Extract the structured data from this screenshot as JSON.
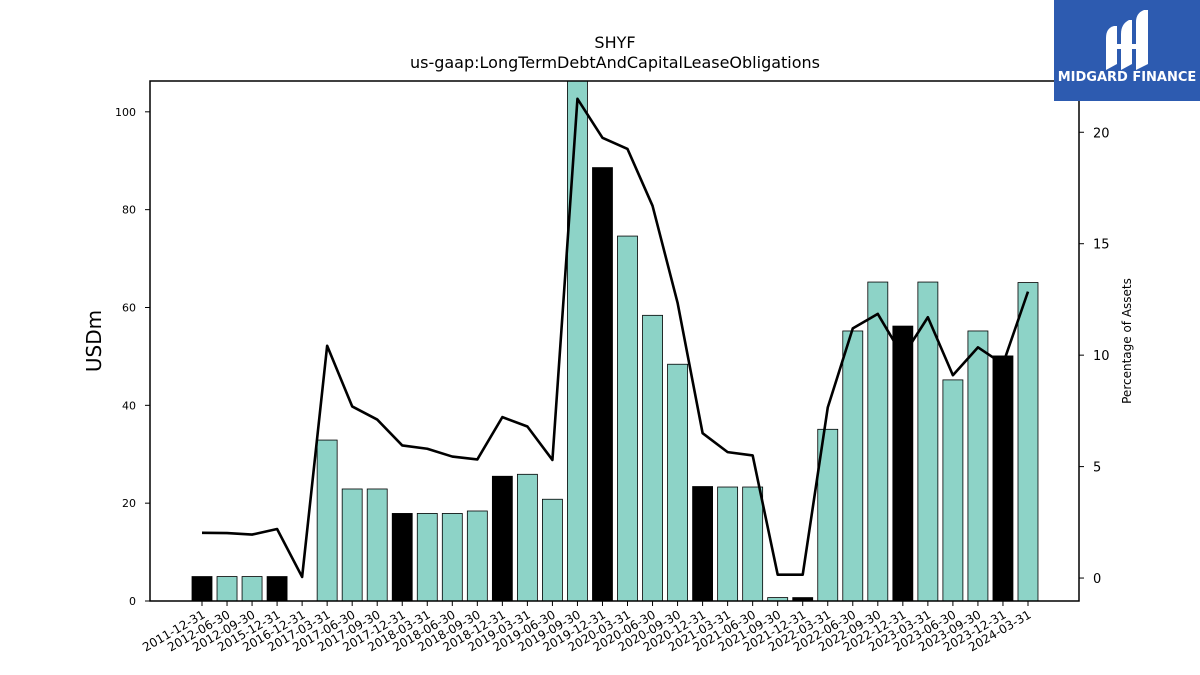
{
  "chart_data": {
    "type": "bar",
    "title": "SHYF",
    "subtitle": "us-gaap:LongTermDebtAndCapitalLeaseObligations",
    "ylabel": "USDm",
    "y2label": "Percentage of Assets",
    "ylim": [
      0,
      106.3
    ],
    "y2lim": [
      -1.03,
      22.3
    ],
    "yticks": [
      0,
      20,
      40,
      60,
      80,
      100
    ],
    "y2ticks": [
      0,
      5,
      10,
      15,
      20
    ],
    "categories": [
      "2011-12-31",
      "2012-06-30",
      "2012-09-30",
      "2015-12-31",
      "2016-12-31",
      "2017-03-31",
      "2017-06-30",
      "2017-09-30",
      "2017-12-31",
      "2018-03-31",
      "2018-06-30",
      "2018-09-30",
      "2018-12-31",
      "2019-03-31",
      "2019-06-30",
      "2019-09-30",
      "2019-12-31",
      "2020-03-31",
      "2020-06-30",
      "2020-09-30",
      "2020-12-31",
      "2021-03-31",
      "2021-06-30",
      "2021-09-30",
      "2021-12-31",
      "2022-03-31",
      "2022-06-30",
      "2022-09-30",
      "2022-12-31",
      "2023-03-31",
      "2023-06-30",
      "2023-09-30",
      "2023-12-31",
      "2024-03-31"
    ],
    "series": [
      {
        "kind": "bar",
        "values": [
          5.0,
          5.0,
          5.0,
          5.0,
          0.0,
          32.9,
          22.9,
          22.9,
          17.9,
          17.9,
          17.9,
          18.4,
          25.5,
          25.9,
          20.8,
          106.3,
          88.6,
          74.6,
          58.4,
          48.4,
          23.4,
          23.3,
          23.3,
          0.7,
          0.7,
          35.1,
          55.2,
          65.2,
          56.2,
          65.2,
          45.2,
          55.2,
          50.1,
          65.1
        ],
        "highlight": [
          true,
          false,
          false,
          true,
          false,
          false,
          false,
          false,
          true,
          false,
          false,
          false,
          true,
          false,
          false,
          false,
          true,
          false,
          false,
          false,
          true,
          false,
          false,
          false,
          true,
          false,
          false,
          false,
          true,
          false,
          false,
          false,
          true,
          false
        ]
      },
      {
        "kind": "line",
        "axis": "right",
        "values": [
          2.03,
          2.02,
          1.95,
          2.2,
          0.05,
          10.42,
          7.7,
          7.11,
          5.95,
          5.8,
          5.45,
          5.32,
          7.22,
          6.8,
          5.3,
          21.5,
          19.75,
          19.25,
          16.7,
          12.35,
          6.5,
          5.65,
          5.5,
          0.15,
          0.15,
          7.65,
          11.2,
          11.85,
          9.95,
          11.7,
          9.1,
          10.35,
          9.6,
          12.85
        ]
      }
    ],
    "colors": {
      "bar": "#8dd3c7",
      "bar_highlight": "#000000",
      "line": "#000000"
    }
  },
  "logo": {
    "text": "MIDGARD FINANCE",
    "background": "#2d5bb0"
  }
}
